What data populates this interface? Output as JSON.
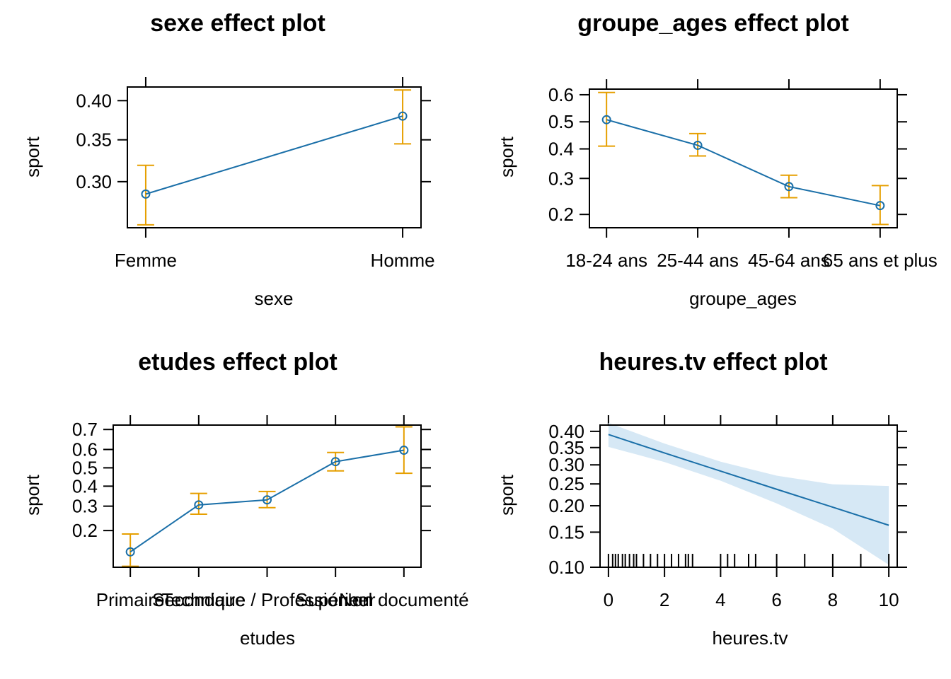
{
  "chart_data": [
    {
      "type": "line",
      "title": "sexe effect plot",
      "xlabel": "sexe",
      "ylabel": "sport",
      "categories": [
        "Femme",
        "Homme"
      ],
      "values": [
        0.286,
        0.38
      ],
      "lower": [
        0.253,
        0.345
      ],
      "upper": [
        0.319,
        0.414
      ],
      "ylim": [
        0.25,
        0.418
      ],
      "yticks": [
        0.3,
        0.35,
        0.4
      ],
      "ytick_labels": [
        "0.30",
        "0.35",
        "0.40"
      ],
      "yscale": "logit",
      "line_color": "#1a6fa8",
      "ci_color": "#e69f00"
    },
    {
      "type": "line",
      "title": "groupe_ages effect plot",
      "xlabel": "groupe_ages",
      "ylabel": "sport",
      "categories": [
        "18-24 ans",
        "25-44 ans",
        "45-64 ans",
        "65 ans et plus"
      ],
      "values": [
        0.508,
        0.413,
        0.275,
        0.222
      ],
      "lower": [
        0.41,
        0.375,
        0.243,
        0.177
      ],
      "upper": [
        0.608,
        0.456,
        0.31,
        0.278
      ],
      "ylim": [
        0.17,
        0.62
      ],
      "yticks": [
        0.2,
        0.3,
        0.4,
        0.5,
        0.6
      ],
      "ytick_labels": [
        "0.2",
        "0.3",
        "0.4",
        "0.5",
        "0.6"
      ],
      "yscale": "logit",
      "line_color": "#1a6fa8",
      "ci_color": "#e69f00"
    },
    {
      "type": "line",
      "title": "etudes effect plot",
      "xlabel": "etudes",
      "ylabel": "sport",
      "categories": [
        "Primaire",
        "Secondaire",
        "Technique / Professionnel",
        "Supérieur",
        "Non documenté"
      ],
      "values": [
        0.135,
        0.306,
        0.33,
        0.534,
        0.596
      ],
      "lower": [
        0.102,
        0.264,
        0.293,
        0.483,
        0.47
      ],
      "upper": [
        0.188,
        0.362,
        0.372,
        0.584,
        0.712
      ],
      "ylim": [
        0.1,
        0.72
      ],
      "yticks": [
        0.2,
        0.3,
        0.4,
        0.5,
        0.6,
        0.7
      ],
      "ytick_labels": [
        "0.2",
        "0.3",
        "0.4",
        "0.5",
        "0.6",
        "0.7"
      ],
      "yscale": "logit",
      "line_color": "#1a6fa8",
      "ci_color": "#e69f00"
    },
    {
      "type": "line",
      "title": "heures.tv effect plot",
      "xlabel": "heures.tv",
      "ylabel": "sport",
      "x": [
        0,
        2,
        4,
        6,
        8,
        10
      ],
      "values": [
        0.39,
        0.334,
        0.283,
        0.237,
        0.197,
        0.162
      ],
      "lower": [
        0.352,
        0.308,
        0.258,
        0.205,
        0.156,
        0.103
      ],
      "upper": [
        0.427,
        0.362,
        0.309,
        0.271,
        0.249,
        0.245
      ],
      "xlim": [
        -0.3,
        10.3
      ],
      "xticks": [
        0,
        2,
        4,
        6,
        8,
        10
      ],
      "xtick_labels": [
        "0",
        "2",
        "4",
        "6",
        "8",
        "10"
      ],
      "ylim": [
        0.1,
        0.42
      ],
      "yticks": [
        0.1,
        0.15,
        0.2,
        0.25,
        0.3,
        0.35,
        0.4
      ],
      "ytick_labels": [
        "0.10",
        "0.15",
        "0.20",
        "0.25",
        "0.30",
        "0.35",
        "0.40"
      ],
      "yscale": "logit",
      "rug_x": [
        0,
        0.15,
        0.25,
        0.35,
        0.5,
        0.6,
        0.75,
        0.9,
        1,
        1.25,
        1.5,
        1.75,
        2,
        2.25,
        2.5,
        2.75,
        2.85,
        3,
        4,
        4.25,
        4.5,
        5,
        5.25,
        6,
        7,
        8,
        9,
        10
      ],
      "line_color": "#1a6fa8",
      "band_color": "#d6e8f5"
    }
  ]
}
